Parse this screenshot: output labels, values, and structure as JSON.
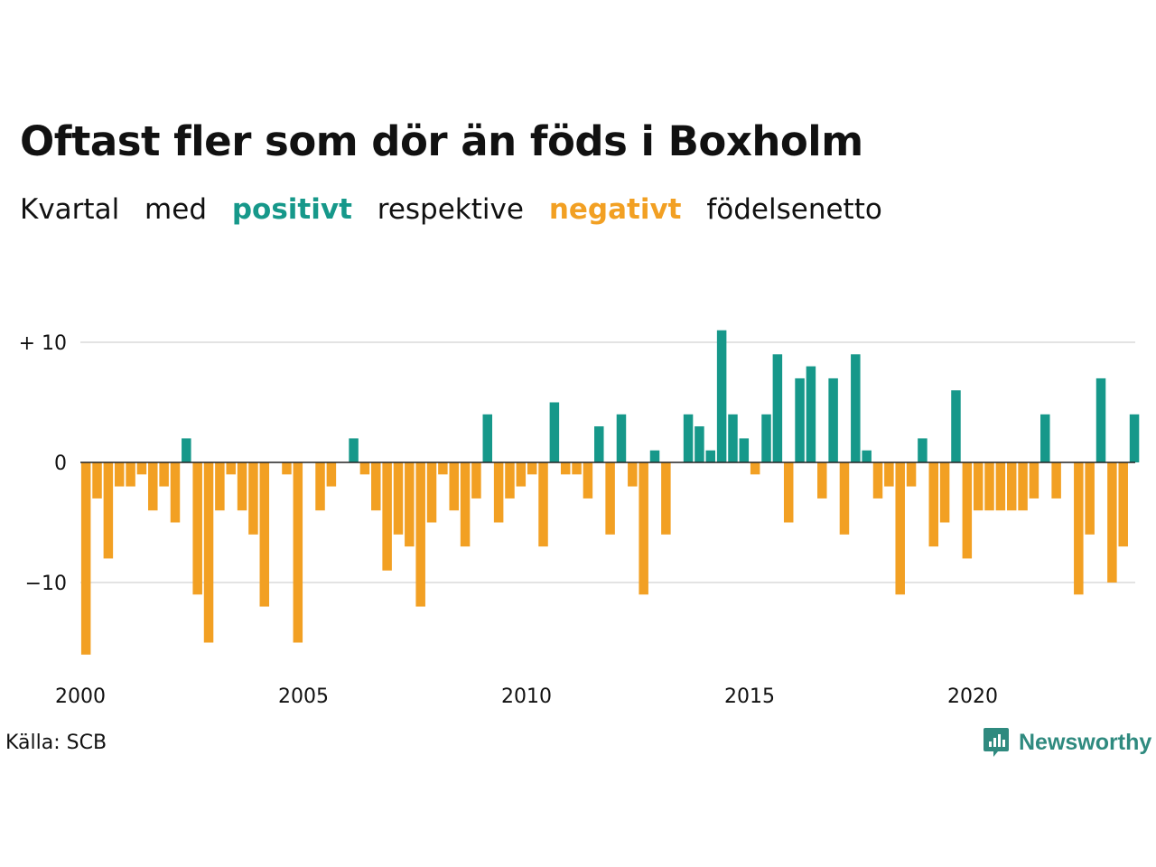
{
  "title": "Oftast fler som dör än föds i Boxholm",
  "subtitle": {
    "part1": "Kvartal",
    "part2": "med",
    "positive_word": "positivt",
    "part3": "respektive",
    "negative_word": "negativt",
    "part4": "födelsenetto"
  },
  "source": "Källa: SCB",
  "brand": "Newsworthy",
  "colors": {
    "positive": "#16988a",
    "negative": "#f2a023",
    "grid": "#e3e3e3",
    "zero_line": "#222222",
    "brand": "#2f8a7f"
  },
  "chart_data": {
    "type": "bar",
    "x_start": 2000,
    "x_step": 0.25,
    "values": [
      -16,
      -3,
      -8,
      -2,
      -2,
      -1,
      -4,
      -2,
      -5,
      2,
      -11,
      -15,
      -4,
      -1,
      -4,
      -6,
      -12,
      0,
      -1,
      -15,
      0,
      -4,
      -2,
      0,
      2,
      -1,
      -4,
      -9,
      -6,
      -7,
      -12,
      -5,
      -1,
      -4,
      -7,
      -3,
      4,
      -5,
      -3,
      -2,
      -1,
      -7,
      5,
      -1,
      -1,
      -3,
      3,
      -6,
      4,
      -2,
      -11,
      1,
      -6,
      0,
      4,
      3,
      1,
      11,
      4,
      2,
      -1,
      4,
      9,
      -5,
      7,
      8,
      -3,
      7,
      -6,
      9,
      1,
      -3,
      -2,
      -11,
      -2,
      2,
      -7,
      -5,
      6,
      -8,
      -4,
      -4,
      -4,
      -4,
      -4,
      -3,
      4,
      -3,
      0,
      -11,
      -6,
      7,
      -10,
      -7,
      4
    ],
    "y_ticks": [
      {
        "value": 10,
        "label": "+ 10"
      },
      {
        "value": 0,
        "label": "0"
      },
      {
        "value": -10,
        "label": "−10"
      }
    ],
    "x_ticks": [
      {
        "value": 2000,
        "label": "2000"
      },
      {
        "value": 2005,
        "label": "2005"
      },
      {
        "value": 2010,
        "label": "2010"
      },
      {
        "value": 2015,
        "label": "2015"
      },
      {
        "value": 2020,
        "label": "2020"
      }
    ],
    "xlim": [
      2000,
      2023.75
    ],
    "ylim": [
      -16,
      11
    ],
    "grid": true,
    "legend": "none"
  }
}
